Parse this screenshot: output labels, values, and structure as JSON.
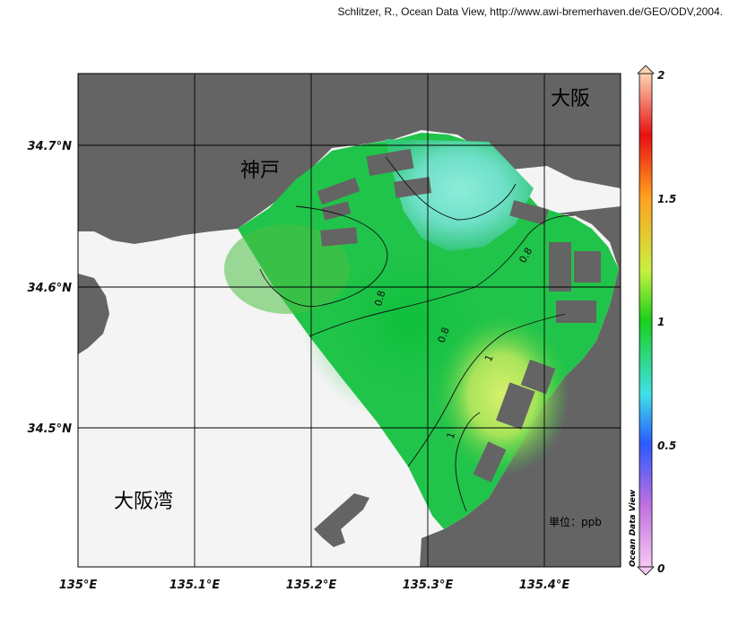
{
  "credit": "Schlitzer, R., Ocean Data View, http://www.awi-bremerhaven.de/GEO/ODV,2004.",
  "map": {
    "place_labels": {
      "kobe": "神戸",
      "osaka": "大阪",
      "osaka_bay": "大阪湾"
    },
    "unit_label": "単位：ppb",
    "x_ticks": [
      "135°E",
      "135.1°E",
      "135.2°E",
      "135.3°E",
      "135.4°E"
    ],
    "y_ticks": [
      "34.7°N",
      "34.6°N",
      "34.5°N"
    ],
    "contour_labels": [
      "0.8",
      "0.8",
      "0.8",
      "1",
      "1"
    ],
    "colors": {
      "land": "#646464",
      "sea_unsampled": "#f4f4f4"
    }
  },
  "colorbar": {
    "title": "Ocean Data View",
    "ticks": [
      "2",
      "1.5",
      "1",
      "0.5",
      "0"
    ],
    "range": [
      0,
      2
    ],
    "stops": [
      {
        "v": 0,
        "c": "#f6c8f2"
      },
      {
        "v": 0.25,
        "c": "#c070e0"
      },
      {
        "v": 0.5,
        "c": "#2b5bff"
      },
      {
        "v": 0.7,
        "c": "#40e0e8"
      },
      {
        "v": 1.0,
        "c": "#1ad01a"
      },
      {
        "v": 1.2,
        "c": "#c8f040"
      },
      {
        "v": 1.5,
        "c": "#ffa020"
      },
      {
        "v": 1.75,
        "c": "#e81010"
      },
      {
        "v": 2.0,
        "c": "#fcd4b4"
      }
    ]
  }
}
